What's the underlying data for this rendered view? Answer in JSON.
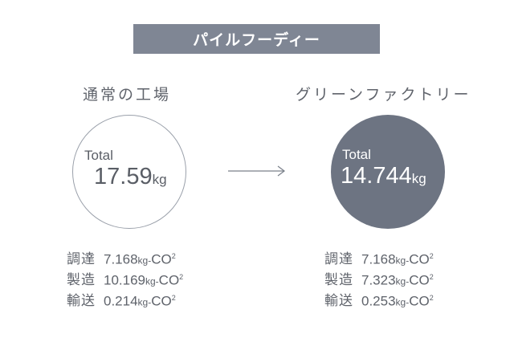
{
  "banner": {
    "title": "パイルフーディー"
  },
  "left": {
    "title": "通常の工場",
    "total_label": "Total",
    "total_value": "17.59",
    "total_unit": "kg",
    "rows": [
      {
        "category": "調達",
        "value": "7.168",
        "unit": "kg-",
        "gas": "CO",
        "sup": "2"
      },
      {
        "category": "製造",
        "value": "10.169",
        "unit": "kg-",
        "gas": "CO",
        "sup": "2"
      },
      {
        "category": "輸送",
        "value": "0.214",
        "unit": "kg-",
        "gas": "CO",
        "sup": "2"
      }
    ]
  },
  "right": {
    "title": "グリーンファクトリー",
    "total_label": "Total",
    "total_value": "14.744",
    "total_unit": "kg",
    "rows": [
      {
        "category": "調達",
        "value": "7.168",
        "unit": "kg-",
        "gas": "CO",
        "sup": "2"
      },
      {
        "category": "製造",
        "value": "7.323",
        "unit": "kg-",
        "gas": "CO",
        "sup": "2"
      },
      {
        "category": "輸送",
        "value": "0.253",
        "unit": "kg-",
        "gas": "CO",
        "sup": "2"
      }
    ]
  },
  "colors": {
    "banner": "#7f8694",
    "filled_circle": "#6d7482",
    "text": "#5a5e66"
  }
}
